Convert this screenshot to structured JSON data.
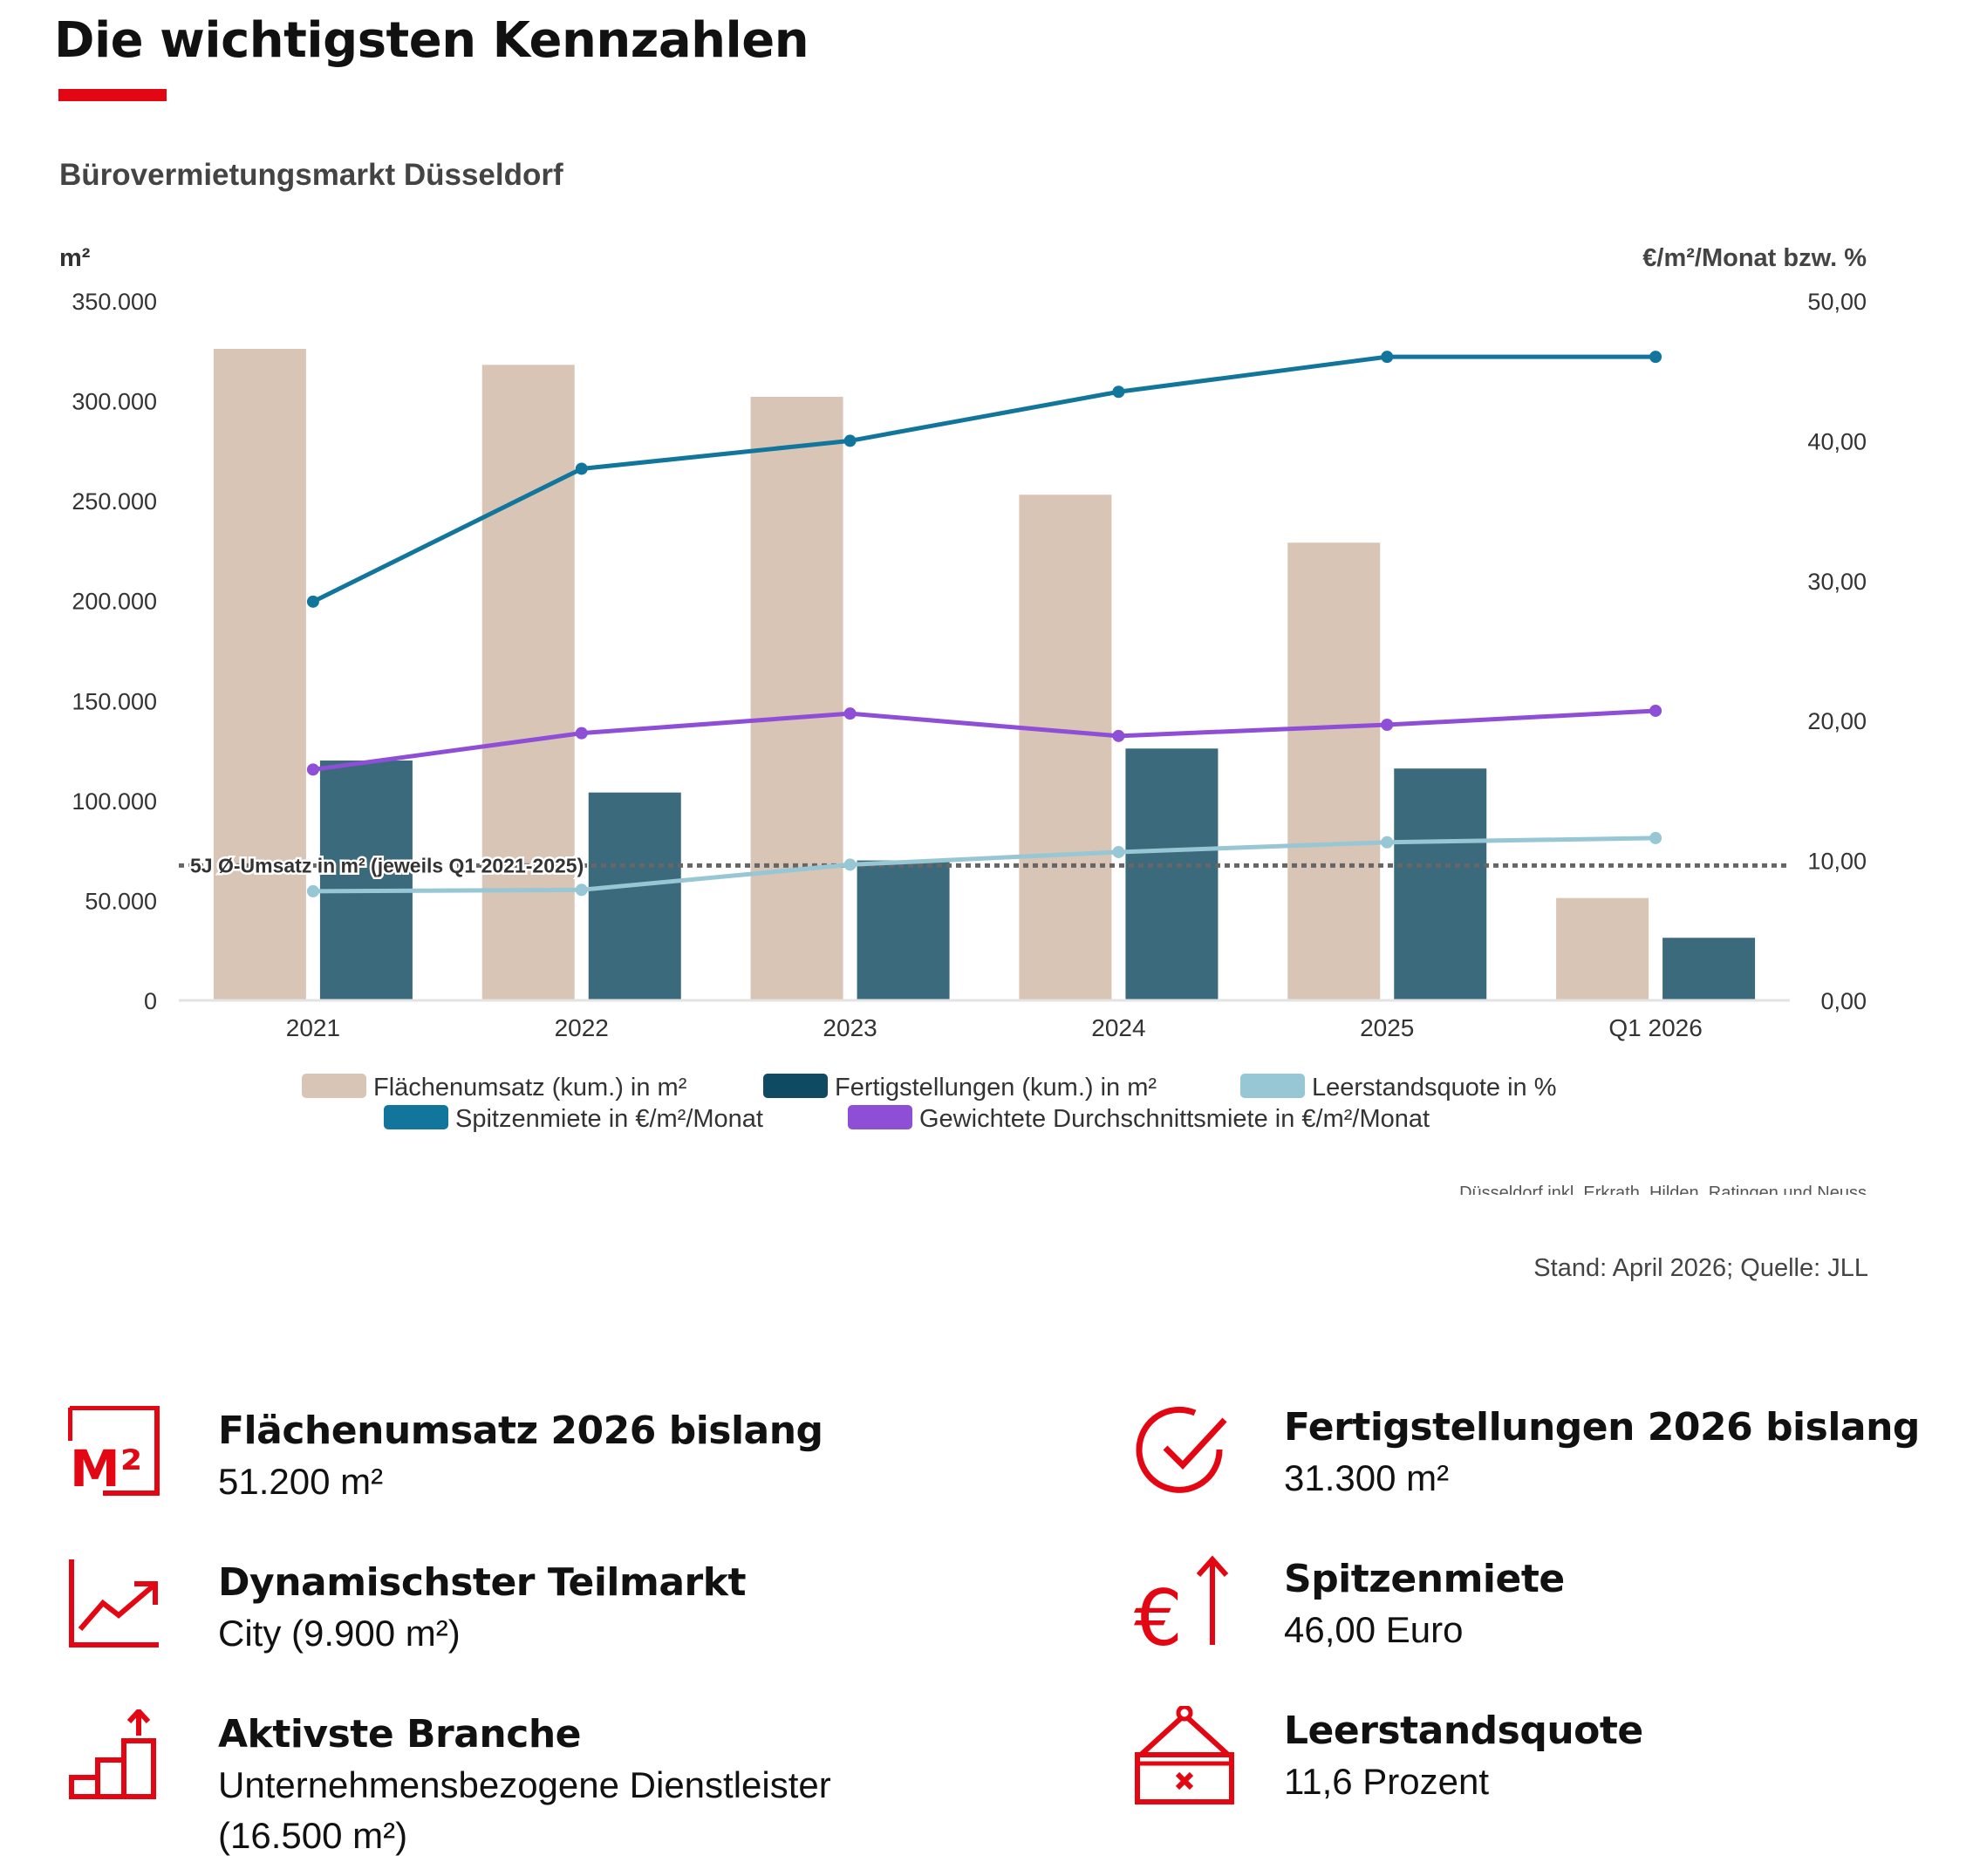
{
  "page": {
    "title": "Die wichtigsten Kennzahlen",
    "accent_color": "#e30613"
  },
  "chart_data": {
    "type": "bar",
    "title": "Bürovermietungsmarkt Düsseldorf",
    "ylabel_left": "m²",
    "ylabel_right": "€/m²/Monat bzw. %",
    "categories": [
      "2021",
      "2022",
      "2023",
      "2024",
      "2025",
      "Q1 2026"
    ],
    "ylim_left": [
      0,
      350000
    ],
    "ylim_right": [
      0,
      50
    ],
    "yticks_left": [
      "350.000",
      "300.000",
      "250.000",
      "200.000",
      "150.000",
      "100.000",
      "50.000",
      "0"
    ],
    "yticks_right": [
      "50,00",
      "40,00",
      "30,00",
      "20,00",
      "10,00",
      "0,00"
    ],
    "bar_series": [
      {
        "name": "Flächenumsatz (kum.) in m²",
        "color": "#d9c5b5",
        "values": [
          326000,
          318000,
          302000,
          253000,
          229000,
          51200
        ]
      },
      {
        "name": "Fertigstellungen (kum.) in m²",
        "color": "#3a6a7c",
        "legend_color": "#0e4a62",
        "values": [
          120000,
          104000,
          70000,
          126000,
          116000,
          31300
        ]
      }
    ],
    "line_series": [
      {
        "name": "Spitzenmiete in €/m²/Monat",
        "color": "#12769c",
        "values": [
          28.5,
          38.0,
          40.0,
          43.5,
          46.0,
          46.0
        ]
      },
      {
        "name": "Gewichtete Durchschnittsmiete in €/m²/Monat",
        "color": "#8e4fd6",
        "values": [
          16.5,
          19.1,
          20.5,
          18.9,
          19.7,
          20.7
        ]
      },
      {
        "name": "Leerstandsquote in %",
        "color": "#97c6d5",
        "values": [
          7.8,
          7.9,
          9.7,
          10.6,
          11.3,
          11.6
        ]
      }
    ],
    "reference_line": {
      "label": "5J Ø-Umsatz in m² (jeweils Q1 2021-2025)",
      "value": 67500,
      "color": "#666666"
    },
    "footnote": "Düsseldorf inkl. Erkrath, Hilden, Ratingen und Neuss",
    "grid": false,
    "legend": "bottom"
  },
  "source": "Stand: April  2026; Quelle: JLL",
  "kpis": {
    "flaechenumsatz": {
      "label": "Flächenumsatz 2026 bislang",
      "value": "51.200 m²",
      "icon": "m2-icon"
    },
    "teilmarkt": {
      "label": "Dynamischster Teilmarkt",
      "value": "City (9.900 m²)",
      "icon": "trend-chart-icon"
    },
    "branche": {
      "label": "Aktivste Branche",
      "value": "Unternehmensbezogene Dienstleister",
      "value2": "(16.500 m²)",
      "icon": "growth-steps-icon"
    },
    "fertigstellungen": {
      "label": "Fertigstellungen 2026 bislang",
      "value": "31.300 m²",
      "icon": "check-circle-icon"
    },
    "spitzenmiete": {
      "label": "Spitzenmiete",
      "value": "46,00 Euro",
      "icon": "euro-up-icon"
    },
    "leerstand": {
      "label": "Leerstandsquote",
      "value": "11,6 Prozent",
      "icon": "vacancy-sign-icon"
    }
  }
}
